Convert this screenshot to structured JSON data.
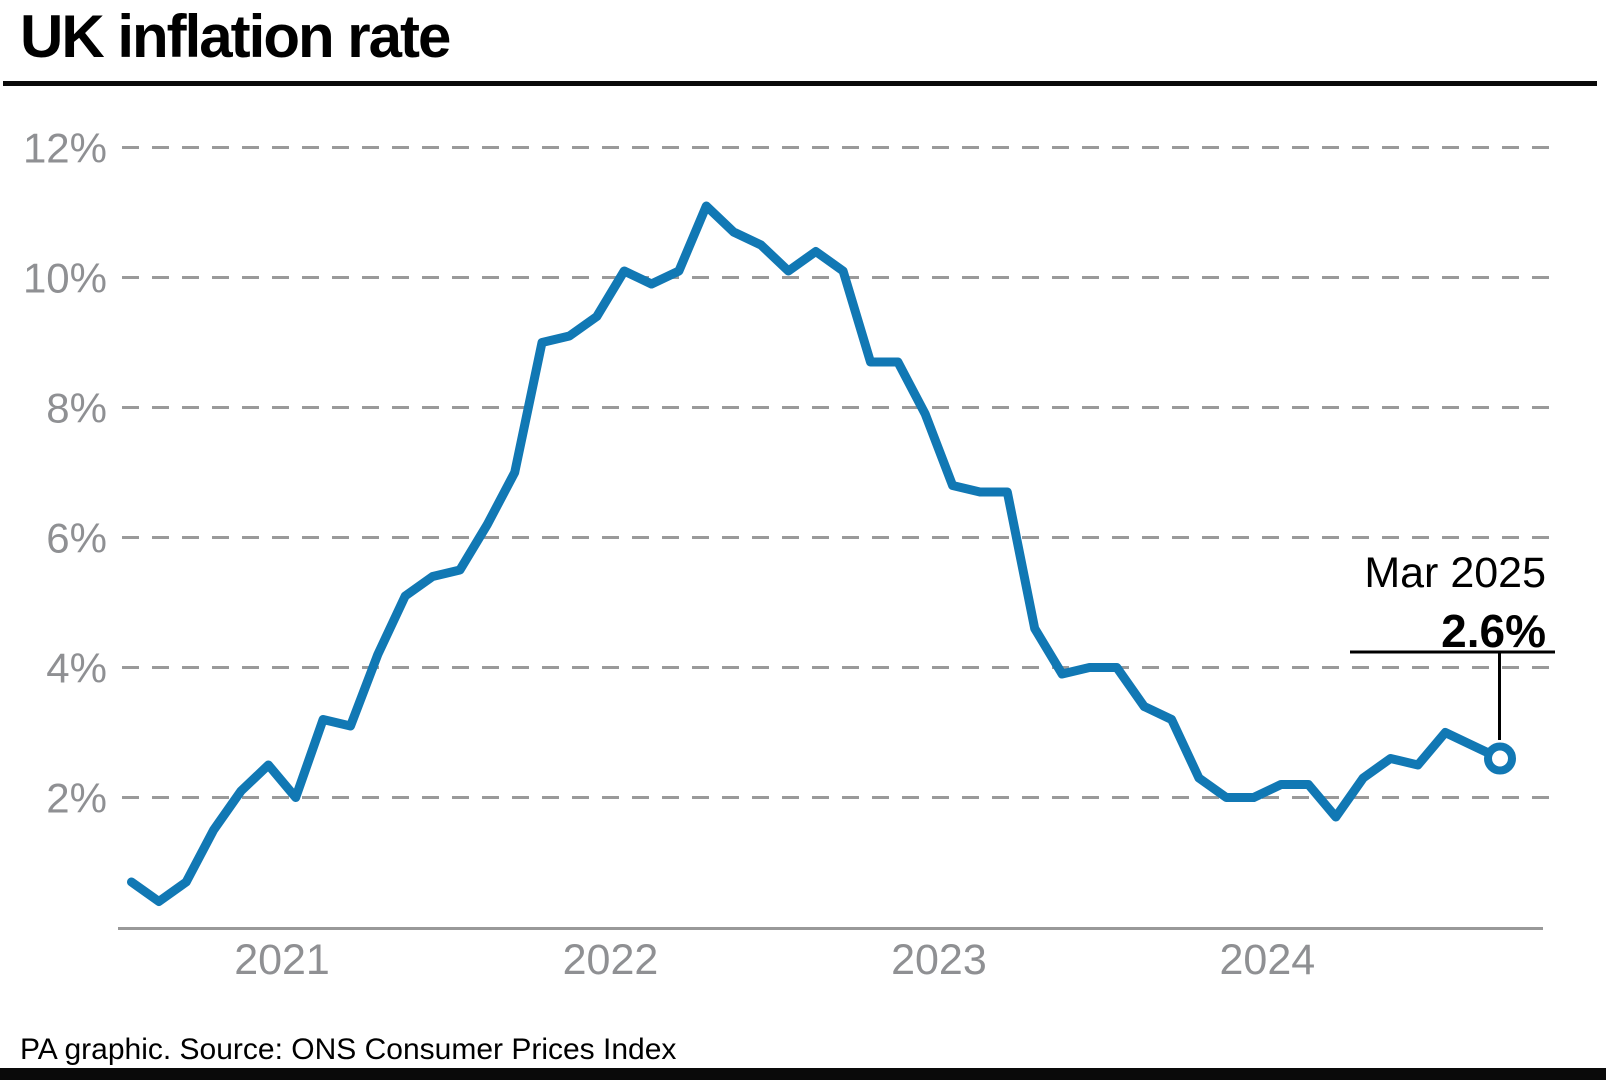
{
  "title": "UK inflation rate",
  "footer": "PA graphic. Source: ONS Consumer Prices Index",
  "annotation": {
    "label": "Mar 2025",
    "value": "2.6%"
  },
  "colors": {
    "line": "#1178b4",
    "grid": "#9a9a9a",
    "axis": "#999999",
    "tick_label": "#8f9093",
    "annotation_line": "#000000",
    "background": "#ffffff",
    "marker_fill": "#ffffff"
  },
  "chart_data": {
    "type": "line",
    "title": "UK inflation rate",
    "x_start": "Jan 2021",
    "x_end": "Mar 2025",
    "x_interval": "monthly",
    "x_tick_labels": [
      "2021",
      "2022",
      "2023",
      "2024"
    ],
    "y_tick_values": [
      2,
      4,
      6,
      8,
      10,
      12
    ],
    "y_tick_labels": [
      "2%",
      "4%",
      "6%",
      "8%",
      "10%",
      "12%"
    ],
    "ylim": [
      0,
      12.8
    ],
    "grid": "horizontal-dashed",
    "legend": "none",
    "series": [
      {
        "name": "UK CPI annual inflation rate (%)",
        "values": [
          0.7,
          0.4,
          0.7,
          1.5,
          2.1,
          2.5,
          2.0,
          3.2,
          3.1,
          4.2,
          5.1,
          5.4,
          5.5,
          6.2,
          7.0,
          9.0,
          9.1,
          9.4,
          10.1,
          9.9,
          10.1,
          11.1,
          10.7,
          10.5,
          10.1,
          10.4,
          10.1,
          8.7,
          8.7,
          7.9,
          6.8,
          6.7,
          6.7,
          4.6,
          3.9,
          4.0,
          4.0,
          3.4,
          3.2,
          2.3,
          2.0,
          2.0,
          2.2,
          2.2,
          1.7,
          2.3,
          2.6,
          2.5,
          3.0,
          2.8,
          2.6
        ]
      }
    ],
    "end_point": {
      "x": "Mar 2025",
      "y": 2.6,
      "marker": "open-circle"
    }
  }
}
